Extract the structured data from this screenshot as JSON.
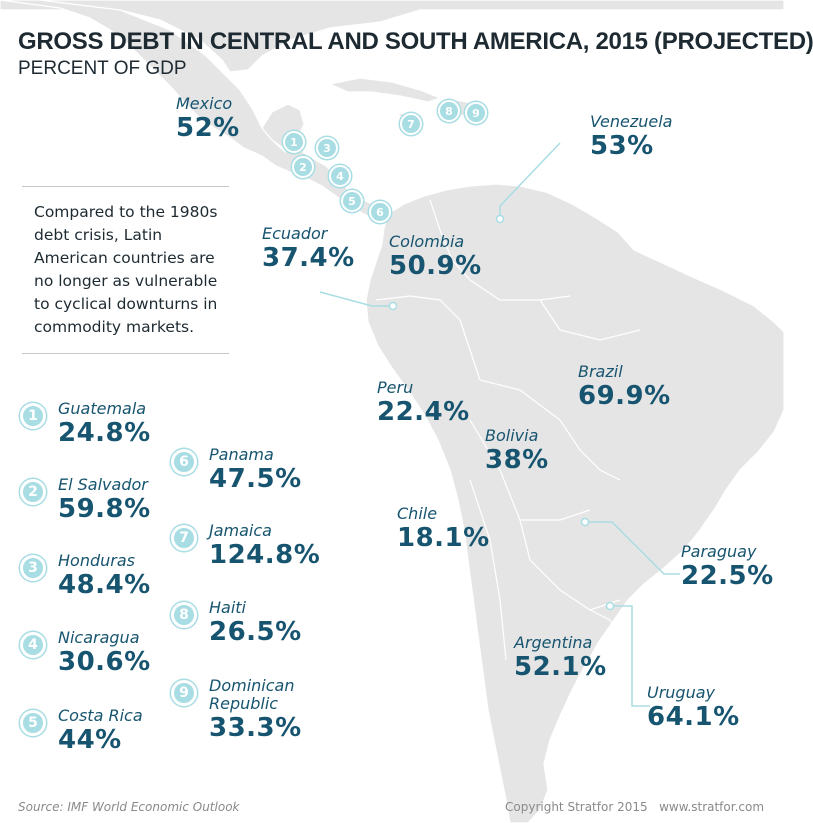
{
  "title": "GROSS DEBT IN CENTRAL AND SOUTH AMERICA, 2015 (PROJECTED)",
  "subtitle": "PERCENT OF GDP",
  "note": "Compared to the 1980s debt crisis,  Latin American countries are no longer as vulnerable to cyclical downturns in commodity markets.",
  "colors": {
    "land": "#e5e5e5",
    "ocean": "#ffffff",
    "label": "#17546f",
    "marker": "#a8dde4",
    "leader_line": "#a8dde4"
  },
  "countries": {
    "mexico": {
      "name": "Mexico",
      "value": "52%"
    },
    "venezuela": {
      "name": "Venezuela",
      "value": "53%"
    },
    "ecuador": {
      "name": "Ecuador",
      "value": "37.4%"
    },
    "colombia": {
      "name": "Colombia",
      "value": "50.9%"
    },
    "peru": {
      "name": "Peru",
      "value": "22.4%"
    },
    "brazil": {
      "name": "Brazil",
      "value": "69.9%"
    },
    "bolivia": {
      "name": "Bolivia",
      "value": "38%"
    },
    "chile": {
      "name": "Chile",
      "value": "18.1%"
    },
    "paraguay": {
      "name": "Paraguay",
      "value": "22.5%"
    },
    "argentina": {
      "name": "Argentina",
      "value": "52.1%"
    },
    "uruguay": {
      "name": "Uruguay",
      "value": "64.1%"
    }
  },
  "legend": [
    {
      "num": "1",
      "name": "Guatemala",
      "value": "24.8%"
    },
    {
      "num": "2",
      "name": "El Salvador",
      "value": "59.8%"
    },
    {
      "num": "3",
      "name": "Honduras",
      "value": "48.4%"
    },
    {
      "num": "4",
      "name": "Nicaragua",
      "value": "30.6%"
    },
    {
      "num": "5",
      "name": "Costa Rica",
      "value": "44%"
    },
    {
      "num": "6",
      "name": "Panama",
      "value": "47.5%"
    },
    {
      "num": "7",
      "name": "Jamaica",
      "value": "124.8%"
    },
    {
      "num": "8",
      "name": "Haiti",
      "value": "26.5%"
    },
    {
      "num": "9",
      "name": "Dominican Republic",
      "value": "33.3%"
    }
  ],
  "footer": {
    "source": "Source: IMF World Economic Outlook",
    "copyright": "Copyright Stratfor 2015",
    "website": "www.stratfor.com"
  }
}
